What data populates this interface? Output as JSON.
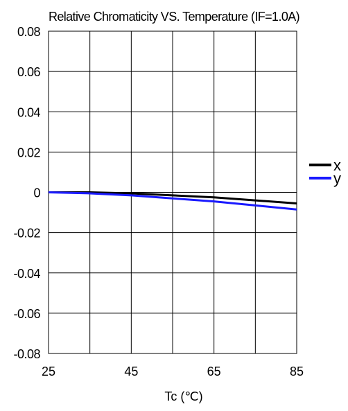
{
  "chart_data": {
    "type": "line",
    "title": "Relative Chromaticity VS. Temperature (IF=1.0A)",
    "xlabel": "Tc (℃)",
    "ylabel": "",
    "x": [
      25,
      35,
      45,
      55,
      65,
      75,
      85
    ],
    "xticks": [
      "25",
      "45",
      "65",
      "85"
    ],
    "xlim": [
      25,
      85
    ],
    "ylim": [
      -0.08,
      0.08
    ],
    "yticks": [
      "0.08",
      "0.06",
      "0.04",
      "0.02",
      "0",
      "-0.02",
      "-0.04",
      "-0.06",
      "-0.08"
    ],
    "grid": true,
    "legend_position": "right",
    "series": [
      {
        "name": "x",
        "color": "#000000",
        "values": [
          0,
          0,
          -0.0005,
          -0.0015,
          -0.0025,
          -0.004,
          -0.0055
        ]
      },
      {
        "name": "y",
        "color": "#1a1aff",
        "values": [
          0,
          -0.0005,
          -0.0015,
          -0.003,
          -0.0045,
          -0.0065,
          -0.0085
        ]
      }
    ]
  }
}
